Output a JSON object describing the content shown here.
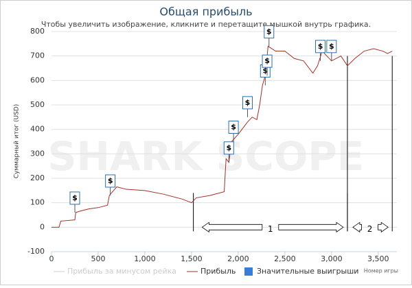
{
  "chart_data": {
    "type": "line",
    "title": "Общая прибыль",
    "subtitle": "Чтобы увеличить изображение, кликните и перетащите мышкой внутрь графика.",
    "watermark": "SHARK SCOPE",
    "y_label": "Суммарный итог (USD)",
    "x_label": "Номер игры",
    "xlim": [
      0,
      3700
    ],
    "ylim": [
      -100,
      800
    ],
    "xticks": [
      0,
      500,
      {
        "value": 1000,
        "label": "1,000"
      },
      {
        "value": 1500,
        "label": "1,500"
      },
      {
        "value": 2000,
        "label": "2,000"
      },
      {
        "value": 2500,
        "label": "2,500"
      },
      {
        "value": 3000,
        "label": "3,000"
      },
      {
        "value": 3500,
        "label": "3,500"
      }
    ],
    "yticks": [
      -100,
      0,
      100,
      200,
      300,
      400,
      500,
      600,
      700,
      800
    ],
    "grid": true,
    "series": [
      {
        "name": "Прибыль",
        "color": "#a0302a",
        "x": [
          0,
          80,
          100,
          250,
          260,
          300,
          400,
          500,
          600,
          620,
          700,
          800,
          1000,
          1200,
          1400,
          1500,
          1550,
          1700,
          1850,
          1870,
          1900,
          1930,
          2000,
          2100,
          2150,
          2200,
          2230,
          2260,
          2290,
          2320,
          2400,
          2500,
          2600,
          2700,
          2800,
          2850,
          2900,
          2950,
          3000,
          3100,
          3170,
          3250,
          3350,
          3450,
          3550,
          3600,
          3650
        ],
        "values": [
          0,
          0,
          25,
          30,
          60,
          65,
          75,
          80,
          90,
          130,
          165,
          155,
          150,
          135,
          115,
          100,
          120,
          130,
          145,
          280,
          265,
          350,
          380,
          430,
          450,
          440,
          500,
          580,
          620,
          740,
          720,
          720,
          690,
          680,
          630,
          660,
          720,
          700,
          680,
          700,
          660,
          690,
          720,
          730,
          720,
          710,
          720
        ]
      }
    ],
    "other_legend_items": [
      {
        "name": "Прибыль за минусом рейка",
        "color": "#cccccc"
      },
      {
        "name": "Значительные выигрыши",
        "color": "#3a7dd4"
      }
    ],
    "win_markers": {
      "label": "$",
      "x": [
        250,
        630,
        1900,
        1950,
        2100,
        2290,
        2310,
        2330,
        2880,
        3000
      ],
      "y": [
        60,
        130,
        265,
        350,
        450,
        580,
        620,
        740,
        680,
        680
      ]
    },
    "annotations": [
      {
        "label": "1",
        "x": [
          1520,
          3170
        ]
      },
      {
        "label": "2",
        "x": [
          3170,
          3650
        ]
      }
    ]
  }
}
